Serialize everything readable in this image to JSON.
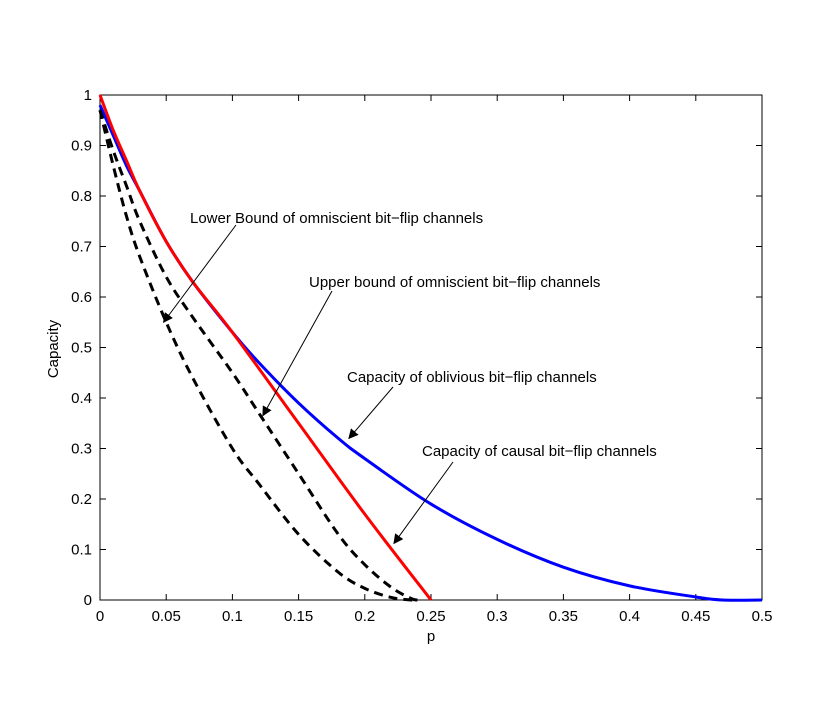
{
  "chart_data": {
    "type": "line",
    "xlabel": "p",
    "ylabel": "Capacity",
    "xlim": [
      0,
      0.5
    ],
    "ylim": [
      0,
      1
    ],
    "xticks": [
      0,
      0.05,
      0.1,
      0.15,
      0.2,
      0.25,
      0.3,
      0.35,
      0.4,
      0.45,
      0.5
    ],
    "yticks": [
      0,
      0.1,
      0.2,
      0.3,
      0.4,
      0.5,
      0.6,
      0.7,
      0.8,
      0.9,
      1
    ],
    "xtick_labels": [
      "0",
      "0.05",
      "0.1",
      "0.15",
      "0.2",
      "0.25",
      "0.3",
      "0.35",
      "0.4",
      "0.45",
      "0.5"
    ],
    "ytick_labels": [
      "0",
      "0.1",
      "0.2",
      "0.3",
      "0.4",
      "0.5",
      "0.6",
      "0.7",
      "0.8",
      "0.9",
      "1"
    ],
    "grid": false,
    "series": [
      {
        "id": "oblivious",
        "color": "#0000ff",
        "style": "solid",
        "x": [
          0,
          0.01,
          0.02,
          0.03,
          0.05,
          0.07,
          0.1,
          0.12,
          0.15,
          0.18,
          0.2,
          0.25,
          0.3,
          0.35,
          0.4,
          0.45,
          0.47,
          0.5
        ],
        "y": [
          0.98,
          0.92,
          0.86,
          0.81,
          0.71,
          0.63,
          0.53,
          0.47,
          0.39,
          0.32,
          0.28,
          0.19,
          0.12,
          0.065,
          0.028,
          0.006,
          0.0,
          0.0
        ]
      },
      {
        "id": "causal",
        "color": "#ff0000",
        "style": "solid",
        "x": [
          0,
          0.01,
          0.02,
          0.03,
          0.05,
          0.07,
          0.1,
          0.15,
          0.2,
          0.25
        ],
        "y": [
          1.0,
          0.93,
          0.87,
          0.81,
          0.71,
          0.63,
          0.53,
          0.35,
          0.17,
          0.0
        ]
      },
      {
        "id": "upper-bound",
        "color": "#000000",
        "style": "dashed",
        "x": [
          0,
          0.01,
          0.02,
          0.03,
          0.05,
          0.07,
          0.1,
          0.12,
          0.15,
          0.18,
          0.2,
          0.22,
          0.235,
          0.24
        ],
        "y": [
          0.97,
          0.89,
          0.82,
          0.75,
          0.64,
          0.56,
          0.45,
          0.37,
          0.25,
          0.13,
          0.07,
          0.025,
          0.003,
          0.0
        ]
      },
      {
        "id": "lower-bound",
        "color": "#000000",
        "style": "dashed",
        "x": [
          0,
          0.01,
          0.02,
          0.03,
          0.05,
          0.07,
          0.1,
          0.12,
          0.15,
          0.18,
          0.2,
          0.22,
          0.235,
          0.24
        ],
        "y": [
          0.97,
          0.86,
          0.76,
          0.68,
          0.55,
          0.44,
          0.3,
          0.23,
          0.13,
          0.055,
          0.023,
          0.005,
          0.0,
          0.0
        ]
      }
    ],
    "annotations": [
      {
        "text": "Lower Bound of omniscient bit−flip channels",
        "arrow_to": [
          0.048,
          0.55
        ]
      },
      {
        "text": "Upper bound of omniscient bit−flip channels",
        "arrow_to": [
          0.123,
          0.365
        ]
      },
      {
        "text": "Capacity of oblivious bit−flip channels",
        "arrow_to": [
          0.188,
          0.32
        ]
      },
      {
        "text": "Capacity of causal bit−flip channels",
        "arrow_to": [
          0.222,
          0.112
        ]
      }
    ]
  }
}
